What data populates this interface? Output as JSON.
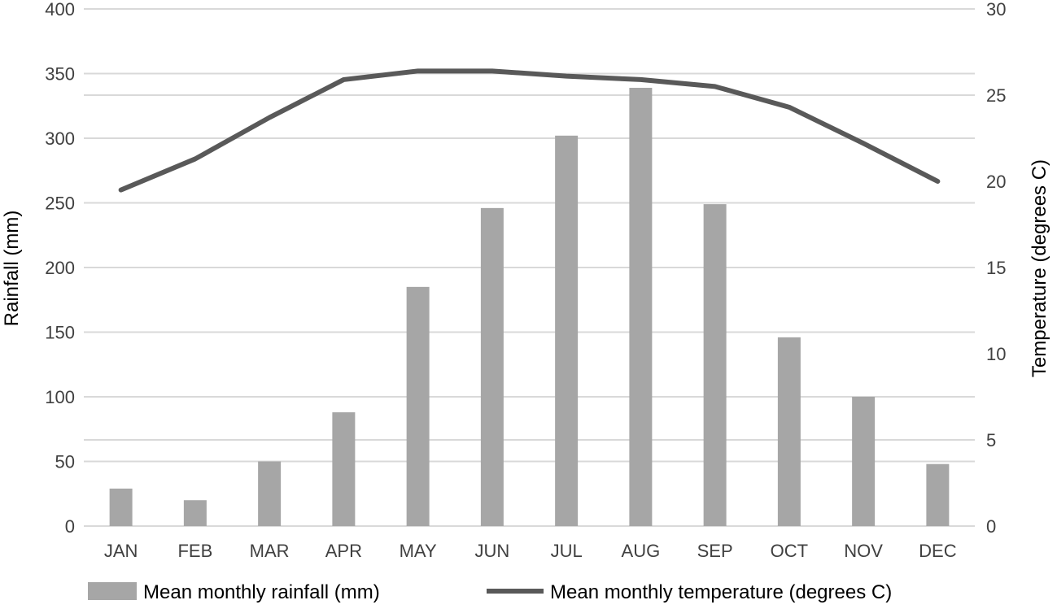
{
  "chart_data": {
    "type": "bar",
    "categories": [
      "JAN",
      "FEB",
      "MAR",
      "APR",
      "MAY",
      "JUN",
      "JUL",
      "AUG",
      "SEP",
      "OCT",
      "NOV",
      "DEC"
    ],
    "series": [
      {
        "name": "Mean monthly rainfall (mm)",
        "type": "bar",
        "axis": "left",
        "color": "#a6a6a6",
        "values": [
          29,
          20,
          50,
          88,
          185,
          246,
          302,
          339,
          249,
          146,
          100,
          48
        ]
      },
      {
        "name": "Mean monthly temperature (degrees C)",
        "type": "line",
        "axis": "right",
        "color": "#595959",
        "values": [
          19.5,
          21.3,
          23.7,
          25.9,
          26.4,
          26.4,
          26.1,
          25.9,
          25.5,
          24.3,
          22.2,
          20.0
        ]
      }
    ],
    "ylabel": "Rainfall (mm)",
    "ylim": [
      0,
      400
    ],
    "yticks": [
      "0",
      "50",
      "100",
      "150",
      "200",
      "250",
      "300",
      "350",
      "400"
    ],
    "y2label": "Temperature (degrees C)",
    "y2lim": [
      0,
      30
    ],
    "y2ticks": [
      "0",
      "5",
      "10",
      "15",
      "20",
      "25",
      "30"
    ],
    "grid": true,
    "legend_position": "bottom"
  }
}
